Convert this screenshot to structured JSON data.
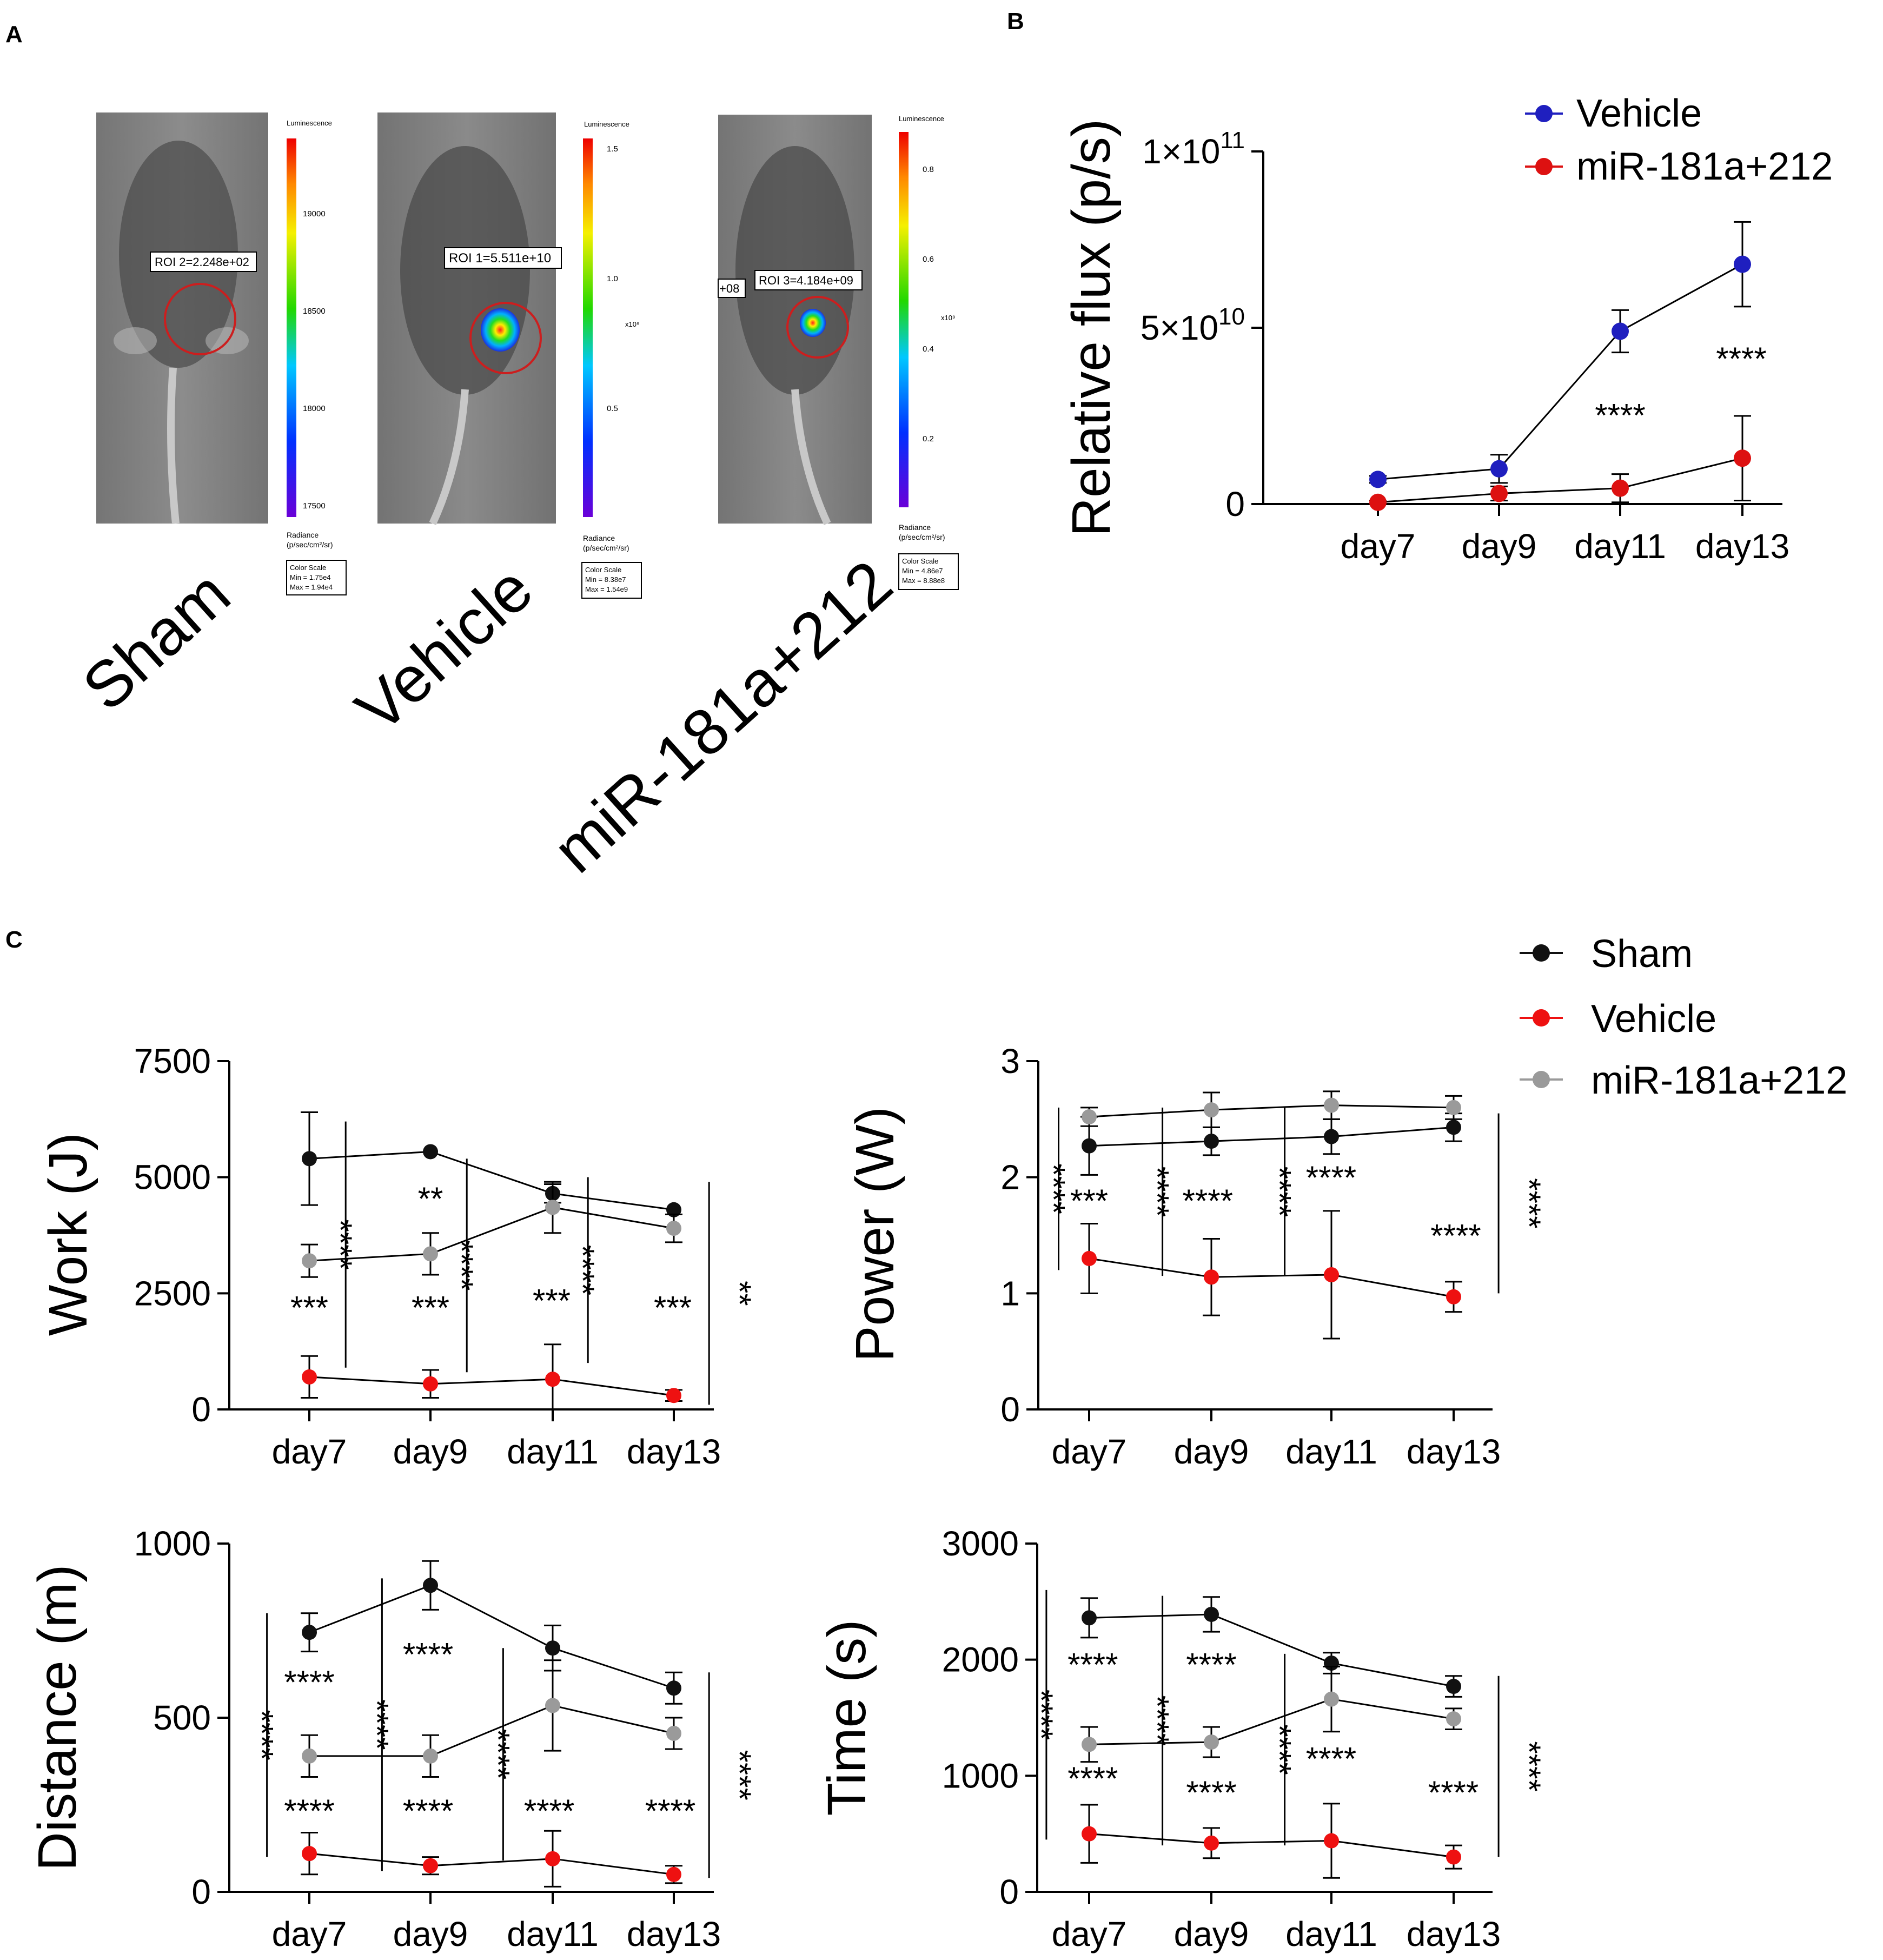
{
  "panel_a": {
    "label": "A",
    "images": [
      {
        "name": "Sham",
        "roi": "ROI 2=2.248e+02",
        "colorbar_title": "Luminescence",
        "colorbar_ticks": [
          "19000",
          "18500",
          "18000",
          "17500"
        ],
        "exponent": "",
        "radiance": "Radiance",
        "units": "(p/sec/cm²/sr)",
        "color_scale": "Color Scale",
        "min": "Min = 1.75e4",
        "max": "Max = 1.94e4"
      },
      {
        "name": "Vehicle",
        "roi": "ROI 1=5.511e+10",
        "colorbar_title": "Luminescence",
        "colorbar_ticks": [
          "1.5",
          "1.0",
          "0.5"
        ],
        "exponent": "x10⁹",
        "radiance": "Radiance",
        "units": "(p/sec/cm²/sr)",
        "color_scale": "Color Scale",
        "min": "Min = 8.38e7",
        "max": "Max = 1.54e9"
      },
      {
        "name": "miR-181a+212",
        "roi": "ROI 3=4.184e+09",
        "roi_side": "+08",
        "colorbar_title": "Luminescence",
        "colorbar_ticks": [
          "0.8",
          "0.6",
          "0.4",
          "0.2"
        ],
        "exponent": "x10⁹",
        "radiance": "Radiance",
        "units": "(p/sec/cm²/sr)",
        "color_scale": "Color Scale",
        "min": "Min = 4.86e7",
        "max": "Max = 8.88e8"
      }
    ]
  },
  "colors": {
    "vehicle_blue": "#1f1fbf",
    "mir_red": "#dd1111",
    "sham_black": "#111111",
    "vehicle_red": "#ee1111",
    "mir_gray": "#9a9a9a"
  },
  "chart_data": [
    {
      "id": "B",
      "panel_label": "B",
      "type": "line",
      "title": "",
      "xlabel": "",
      "ylabel": "Relative flux (p/s)",
      "categories": [
        "day7",
        "day9",
        "day11",
        "day13"
      ],
      "ylim": [
        0,
        100000000000
      ],
      "yticks": [
        {
          "value": 0,
          "label": "0",
          "exp": ""
        },
        {
          "value": 50000000000,
          "label": "5×10",
          "exp": "10"
        },
        {
          "value": 100000000000,
          "label": "1×10",
          "exp": "11"
        }
      ],
      "series": [
        {
          "name": "Vehicle",
          "color": "#1f1fbf",
          "values": [
            7000000000,
            10000000000,
            49000000000,
            68000000000
          ],
          "errors": [
            1000000000,
            4000000000,
            6000000000,
            12000000000
          ]
        },
        {
          "name": "miR-181a+212",
          "color": "#dd1111",
          "values": [
            500000000,
            3000000000,
            4500000000,
            13000000000
          ],
          "errors": [
            500000000,
            2000000000,
            4000000000,
            12000000000
          ]
        }
      ],
      "legend": "top-right",
      "annotations": [
        {
          "text": "****",
          "cat": 2.0,
          "y": 22000000000
        },
        {
          "text": "****",
          "cat": 3.0,
          "y": 38000000000
        }
      ]
    },
    {
      "id": "C-work",
      "panel_label": "C",
      "type": "line",
      "xlabel": "",
      "ylabel": "Work (J)",
      "categories": [
        "day7",
        "day9",
        "day11",
        "day13"
      ],
      "ylim": [
        0,
        7500
      ],
      "yticks": [
        {
          "value": 0,
          "label": "0"
        },
        {
          "value": 2500,
          "label": "2500"
        },
        {
          "value": 5000,
          "label": "5000"
        },
        {
          "value": 7500,
          "label": "7500"
        }
      ],
      "series": [
        {
          "name": "Sham",
          "color": "#111111",
          "values": [
            5400,
            5550,
            4650,
            4300
          ],
          "errors": [
            1000,
            0,
            200,
            0
          ]
        },
        {
          "name": "Vehicle",
          "color": "#ee1111",
          "values": [
            700,
            550,
            650,
            300
          ],
          "errors": [
            450,
            300,
            750,
            120
          ]
        },
        {
          "name": "miR-181a+212",
          "color": "#9a9a9a",
          "values": [
            3200,
            3350,
            4350,
            3900
          ],
          "errors": [
            350,
            450,
            550,
            300
          ]
        }
      ],
      "brackets": [
        {
          "x": 0.3,
          "y1": 900,
          "y2": 6200,
          "label": "****",
          "pos": "left"
        },
        {
          "x": 1.3,
          "y1": 800,
          "y2": 5400,
          "label": "****",
          "pos": "left"
        },
        {
          "x": 2.3,
          "y1": 1000,
          "y2": 5000,
          "label": "****",
          "pos": "left"
        },
        {
          "x": 3.3,
          "y1": 100,
          "y2": 4900,
          "label": "**",
          "pos": "right"
        }
      ],
      "annotations": [
        {
          "text": "***",
          "cat": 0.0,
          "y": 1950
        },
        {
          "text": "**",
          "cat": 1.0,
          "y": 4300
        },
        {
          "text": "***",
          "cat": 1.0,
          "y": 1950
        },
        {
          "text": "***",
          "cat": 2.0,
          "y": 2100
        },
        {
          "text": "***",
          "cat": 3.0,
          "y": 1950
        }
      ]
    },
    {
      "id": "C-power",
      "type": "line",
      "xlabel": "",
      "ylabel": "Power (W)",
      "categories": [
        "day7",
        "day9",
        "day11",
        "day13"
      ],
      "ylim": [
        0,
        3
      ],
      "yticks": [
        {
          "value": 0,
          "label": "0"
        },
        {
          "value": 1,
          "label": "1"
        },
        {
          "value": 2,
          "label": "2"
        },
        {
          "value": 3,
          "label": "3"
        }
      ],
      "series": [
        {
          "name": "Sham",
          "color": "#111111",
          "values": [
            2.27,
            2.31,
            2.35,
            2.43
          ],
          "errors": [
            0.25,
            0.12,
            0.15,
            0.12
          ]
        },
        {
          "name": "Vehicle",
          "color": "#ee1111",
          "values": [
            1.3,
            1.14,
            1.16,
            0.97
          ],
          "errors": [
            0.3,
            0.33,
            0.55,
            0.13
          ]
        },
        {
          "name": "miR-181a+212",
          "color": "#9a9a9a",
          "values": [
            2.52,
            2.58,
            2.62,
            2.6
          ],
          "errors": [
            0.08,
            0.15,
            0.12,
            0.1
          ]
        }
      ],
      "brackets": [
        {
          "x": -0.25,
          "y1": 1.2,
          "y2": 2.6,
          "label": "****",
          "pos": "left"
        },
        {
          "x": 0.6,
          "y1": 1.15,
          "y2": 2.6,
          "label": "****",
          "pos": "left"
        },
        {
          "x": 1.6,
          "y1": 1.15,
          "y2": 2.6,
          "label": "****",
          "pos": "left"
        },
        {
          "x": 3.35,
          "y1": 1.0,
          "y2": 2.55,
          "label": "****",
          "pos": "right"
        }
      ],
      "annotations": [
        {
          "text": "***",
          "cat": 0.0,
          "y": 1.7
        },
        {
          "text": "****",
          "cat": 0.97,
          "y": 1.7
        },
        {
          "text": "****",
          "cat": 1.98,
          "y": 1.9
        },
        {
          "text": "****",
          "cat": 3.0,
          "y": 1.4
        }
      ]
    },
    {
      "id": "C-distance",
      "type": "line",
      "xlabel": "",
      "ylabel": "Distance (m)",
      "categories": [
        "day7",
        "day9",
        "day11",
        "day13"
      ],
      "ylim": [
        0,
        1000
      ],
      "yticks": [
        {
          "value": 0,
          "label": "0"
        },
        {
          "value": 500,
          "label": "500"
        },
        {
          "value": 1000,
          "label": "1000"
        }
      ],
      "series": [
        {
          "name": "Sham",
          "color": "#111111",
          "values": [
            745,
            880,
            700,
            585
          ],
          "errors": [
            55,
            70,
            65,
            45
          ]
        },
        {
          "name": "Vehicle",
          "color": "#ee1111",
          "values": [
            110,
            75,
            95,
            50
          ],
          "errors": [
            60,
            25,
            80,
            25
          ]
        },
        {
          "name": "miR-181a+212",
          "color": "#9a9a9a",
          "values": [
            390,
            390,
            535,
            455
          ],
          "errors": [
            60,
            60,
            130,
            45
          ]
        }
      ],
      "brackets": [
        {
          "x": -0.35,
          "y1": 100,
          "y2": 800,
          "label": "****",
          "pos": "left"
        },
        {
          "x": 0.6,
          "y1": 60,
          "y2": 900,
          "label": "****",
          "pos": "left"
        },
        {
          "x": 1.6,
          "y1": 90,
          "y2": 700,
          "label": "****",
          "pos": "left"
        },
        {
          "x": 3.3,
          "y1": 40,
          "y2": 630,
          "label": "****",
          "pos": "right"
        }
      ],
      "annotations": [
        {
          "text": "****",
          "cat": 0.0,
          "y": 570
        },
        {
          "text": "****",
          "cat": 0.0,
          "y": 200
        },
        {
          "text": "****",
          "cat": 0.98,
          "y": 650
        },
        {
          "text": "****",
          "cat": 0.98,
          "y": 200
        },
        {
          "text": "****",
          "cat": 1.98,
          "y": 200
        },
        {
          "text": "****",
          "cat": 2.98,
          "y": 200
        }
      ]
    },
    {
      "id": "C-time",
      "type": "line",
      "xlabel": "",
      "ylabel": "Time (s)",
      "categories": [
        "day7",
        "day9",
        "day11",
        "day13"
      ],
      "ylim": [
        0,
        3000
      ],
      "yticks": [
        {
          "value": 0,
          "label": "0"
        },
        {
          "value": 1000,
          "label": "1000"
        },
        {
          "value": 2000,
          "label": "2000"
        },
        {
          "value": 3000,
          "label": "3000"
        }
      ],
      "series": [
        {
          "name": "Sham",
          "color": "#111111",
          "values": [
            2360,
            2390,
            1970,
            1770
          ],
          "errors": [
            170,
            150,
            90,
            90
          ]
        },
        {
          "name": "Vehicle",
          "color": "#ee1111",
          "values": [
            500,
            420,
            440,
            300
          ],
          "errors": [
            250,
            130,
            320,
            100
          ]
        },
        {
          "name": "miR-181a+212",
          "color": "#9a9a9a",
          "values": [
            1270,
            1290,
            1660,
            1490
          ],
          "errors": [
            150,
            130,
            280,
            90
          ]
        }
      ],
      "brackets": [
        {
          "x": -0.35,
          "y1": 450,
          "y2": 2600,
          "label": "****",
          "pos": "left"
        },
        {
          "x": 0.6,
          "y1": 400,
          "y2": 2550,
          "label": "****",
          "pos": "left"
        },
        {
          "x": 1.6,
          "y1": 400,
          "y2": 2050,
          "label": "****",
          "pos": "left"
        },
        {
          "x": 3.35,
          "y1": 300,
          "y2": 1860,
          "label": "****",
          "pos": "right"
        }
      ],
      "annotations": [
        {
          "text": "****",
          "cat": 0.03,
          "y": 1860
        },
        {
          "text": "****",
          "cat": 0.03,
          "y": 880
        },
        {
          "text": "****",
          "cat": 1.0,
          "y": 1860
        },
        {
          "text": "****",
          "cat": 1.0,
          "y": 760
        },
        {
          "text": "****",
          "cat": 1.98,
          "y": 1050
        },
        {
          "text": "****",
          "cat": 2.98,
          "y": 760
        }
      ]
    }
  ],
  "legend_c": {
    "items": [
      {
        "name": "Sham",
        "color": "#111111"
      },
      {
        "name": "Vehicle",
        "color": "#ee1111"
      },
      {
        "name": "miR-181a+212",
        "color": "#9a9a9a"
      }
    ]
  }
}
